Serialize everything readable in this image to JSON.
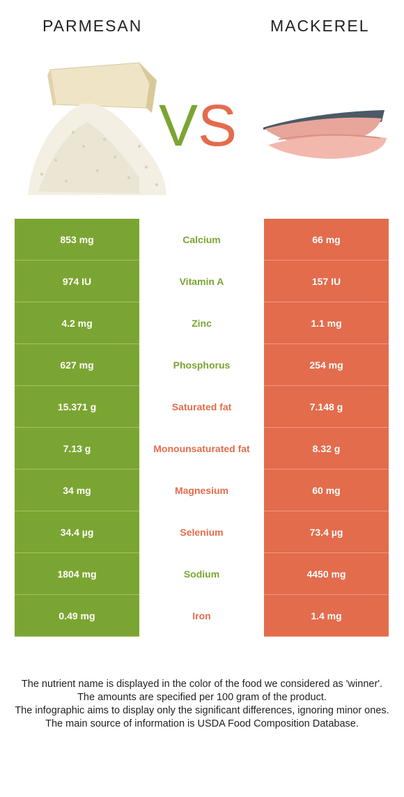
{
  "left_food": "PARMESAN",
  "right_food": "MACKEREL",
  "vs": {
    "v": "V",
    "s": "S"
  },
  "colors": {
    "left": "#7ba532",
    "right": "#e36c4c"
  },
  "rows": [
    {
      "left": "853 mg",
      "nutrient": "Calcium",
      "right": "66 mg",
      "winner": "left"
    },
    {
      "left": "974 IU",
      "nutrient": "Vitamin A",
      "right": "157 IU",
      "winner": "left"
    },
    {
      "left": "4.2 mg",
      "nutrient": "Zinc",
      "right": "1.1 mg",
      "winner": "left"
    },
    {
      "left": "627 mg",
      "nutrient": "Phosphorus",
      "right": "254 mg",
      "winner": "left"
    },
    {
      "left": "15.371 g",
      "nutrient": "Saturated fat",
      "right": "7.148 g",
      "winner": "right"
    },
    {
      "left": "7.13 g",
      "nutrient": "Monounsaturated fat",
      "right": "8.32 g",
      "winner": "right"
    },
    {
      "left": "34 mg",
      "nutrient": "Magnesium",
      "right": "60 mg",
      "winner": "right"
    },
    {
      "left": "34.4 µg",
      "nutrient": "Selenium",
      "right": "73.4 µg",
      "winner": "right"
    },
    {
      "left": "1804 mg",
      "nutrient": "Sodium",
      "right": "4450 mg",
      "winner": "left"
    },
    {
      "left": "0.49 mg",
      "nutrient": "Iron",
      "right": "1.4 mg",
      "winner": "right"
    }
  ],
  "footer": [
    "The nutrient name is displayed in the color of the food we considered as 'winner'.",
    "The amounts are specified per 100 gram of the product.",
    "The infographic aims to display only the significant differences, ignoring minor ones.",
    "The main source of information is USDA Food Composition Database."
  ]
}
